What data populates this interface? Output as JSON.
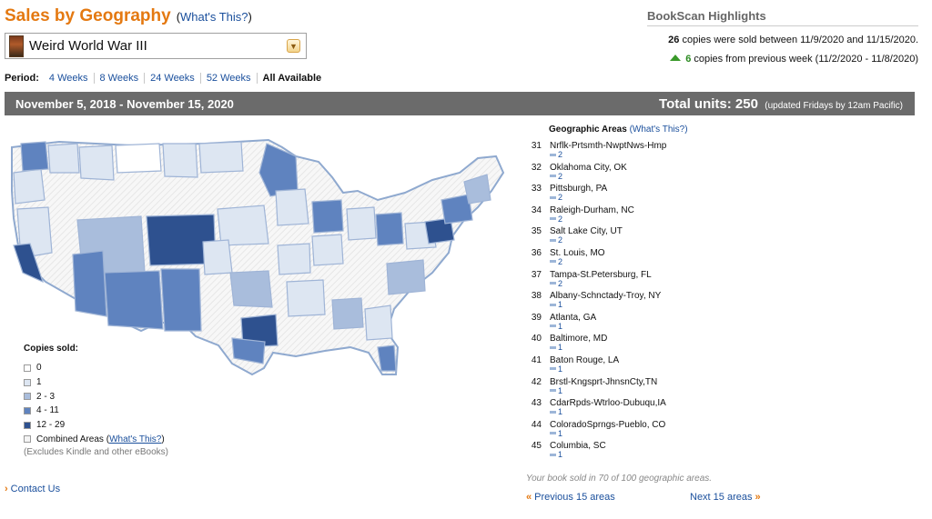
{
  "header": {
    "title": "Sales by Geography",
    "whats_this_open": "(",
    "whats_this_link": "What's This?",
    "whats_this_close": ")"
  },
  "book_select": {
    "value": "Weird World War III"
  },
  "period": {
    "label": "Period:",
    "options": [
      {
        "label": "4 Weeks",
        "active": false
      },
      {
        "label": "8 Weeks",
        "active": false
      },
      {
        "label": "24 Weeks",
        "active": false
      },
      {
        "label": "52 Weeks",
        "active": false
      },
      {
        "label": "All Available",
        "active": true
      }
    ]
  },
  "highlights": {
    "title": "BookScan Highlights",
    "copies_sold": "26",
    "copies_sold_text": "copies were sold between 11/9/2020 and 11/15/2020.",
    "change": "6",
    "change_text": "copies from previous week (11/2/2020 - 11/8/2020)"
  },
  "range_bar": {
    "dates": "November 5, 2018 - November 15, 2020",
    "total_label": "Total units: 250",
    "note": "(updated Fridays by 12am Pacific)"
  },
  "legend": {
    "title": "Copies sold:",
    "items": [
      {
        "label": "0",
        "color": "#ffffff"
      },
      {
        "label": "1",
        "color": "#dde6f2"
      },
      {
        "label": "2 - 3",
        "color": "#a9bddc"
      },
      {
        "label": "4 - 11",
        "color": "#5f83bf"
      },
      {
        "label": "12 - 29",
        "color": "#2e518f"
      },
      {
        "label": "Combined Areas",
        "color": "#f4f4f4"
      }
    ],
    "combined_open": "(",
    "combined_link": "What's This?",
    "combined_close": ")",
    "note": "(Excludes Kindle and other eBooks)"
  },
  "footer": {
    "contact": "Contact Us"
  },
  "geo": {
    "header": "Geographic Areas",
    "whats_this": "(What's This?)",
    "items": [
      {
        "rank": "31",
        "name": "Nrflk-Prtsmth-NwptNws-Hmp",
        "count": "2"
      },
      {
        "rank": "32",
        "name": "Oklahoma City, OK",
        "count": "2"
      },
      {
        "rank": "33",
        "name": "Pittsburgh, PA",
        "count": "2"
      },
      {
        "rank": "34",
        "name": "Raleigh-Durham, NC",
        "count": "2"
      },
      {
        "rank": "35",
        "name": "Salt Lake City, UT",
        "count": "2"
      },
      {
        "rank": "36",
        "name": "St. Louis, MO",
        "count": "2"
      },
      {
        "rank": "37",
        "name": "Tampa-St.Petersburg, FL",
        "count": "2"
      },
      {
        "rank": "38",
        "name": "Albany-Schnctady-Troy, NY",
        "count": "1"
      },
      {
        "rank": "39",
        "name": "Atlanta, GA",
        "count": "1"
      },
      {
        "rank": "40",
        "name": "Baltimore, MD",
        "count": "1"
      },
      {
        "rank": "41",
        "name": "Baton Rouge, LA",
        "count": "1"
      },
      {
        "rank": "42",
        "name": "Brstl-Kngsprt-JhnsnCty,TN",
        "count": "1"
      },
      {
        "rank": "43",
        "name": "CdarRpds-Wtrloo-Dubuqu,IA",
        "count": "1"
      },
      {
        "rank": "44",
        "name": "ColoradoSprngs-Pueblo, CO",
        "count": "1"
      },
      {
        "rank": "45",
        "name": "Columbia, SC",
        "count": "1"
      }
    ],
    "summary": "Your book sold in 70 of 100 geographic areas.",
    "prev": "Previous 15 areas",
    "next": "Next 15 areas"
  }
}
